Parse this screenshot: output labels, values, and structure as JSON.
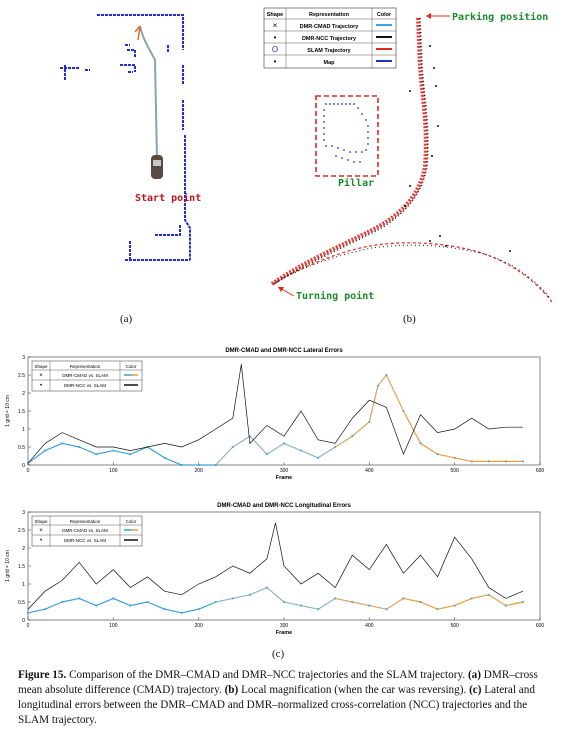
{
  "panel_a": {
    "label": "(a)",
    "start_point": "Start point"
  },
  "panel_b": {
    "label": "(b)",
    "parking_position": "Parking position",
    "pillar": "Pillar",
    "turning_point": "Turning point",
    "legend": {
      "headers": [
        "Shape",
        "Representation",
        "Color"
      ],
      "rows": [
        {
          "shape": "×",
          "label": "DMR-CMAD Trajectory",
          "color": "#39a7d8"
        },
        {
          "shape": "•",
          "label": "DMR-NCC Trajectory",
          "color": "#111111"
        },
        {
          "shape": "O",
          "label": "SLAM Trajectory",
          "color": "#e3261f"
        },
        {
          "shape": "•",
          "label": "Map",
          "color": "#1f2fd6"
        }
      ]
    }
  },
  "panel_c": {
    "label": "(c)",
    "legend": {
      "headers": [
        "Shape",
        "Representation",
        "Color"
      ],
      "rows": [
        {
          "shape": "×",
          "label": "DMR-CMAD vs. SLAM"
        },
        {
          "shape": "•",
          "label": "DMR-NCC vs. SLAM"
        }
      ]
    }
  },
  "chart_data": [
    {
      "type": "line",
      "title": "DMR-CMAD and DMR-NCC Lateral Errors",
      "xlabel": "Frame",
      "ylabel": "1 grid = 10 cm",
      "xlim": [
        0,
        600
      ],
      "ylim": [
        0,
        3
      ],
      "xticks": [
        "0",
        "100",
        "200",
        "300",
        "400",
        "500",
        "600"
      ],
      "yticks": [
        "0",
        "0.5",
        "1",
        "1.5",
        "2",
        "2.5",
        "3"
      ],
      "series": [
        {
          "name": "DMR-CMAD vs. SLAM",
          "x": [
            0,
            20,
            40,
            60,
            80,
            100,
            120,
            140,
            160,
            180,
            200,
            220,
            240,
            260,
            280,
            300,
            320,
            340,
            360,
            380,
            400,
            410,
            420,
            440,
            460,
            480,
            500,
            520,
            540,
            560,
            580
          ],
          "y": [
            0.05,
            0.4,
            0.6,
            0.5,
            0.3,
            0.4,
            0.3,
            0.5,
            0.2,
            0.0,
            0.0,
            0.0,
            0.5,
            0.8,
            0.3,
            0.6,
            0.4,
            0.2,
            0.5,
            0.8,
            1.2,
            2.2,
            2.5,
            1.5,
            0.6,
            0.3,
            0.2,
            0.1,
            0.1,
            0.1,
            0.1
          ]
        },
        {
          "name": "DMR-NCC vs. SLAM",
          "x": [
            0,
            20,
            40,
            60,
            80,
            100,
            120,
            140,
            160,
            180,
            200,
            220,
            240,
            250,
            260,
            280,
            300,
            320,
            340,
            360,
            380,
            400,
            420,
            440,
            460,
            480,
            500,
            520,
            540,
            560,
            580
          ],
          "y": [
            0.05,
            0.6,
            0.9,
            0.7,
            0.5,
            0.5,
            0.4,
            0.5,
            0.6,
            0.5,
            0.7,
            1.0,
            1.3,
            2.8,
            0.6,
            1.1,
            0.8,
            1.5,
            0.7,
            0.6,
            1.3,
            1.8,
            1.6,
            0.3,
            1.4,
            0.9,
            1.0,
            1.3,
            1.0,
            1.05,
            1.05
          ]
        }
      ]
    },
    {
      "type": "line",
      "title": "DMR-CMAD and DMR-NCC Longitudinal Errors",
      "xlabel": "Frame",
      "ylabel": "1 grid = 10 cm",
      "xlim": [
        0,
        600
      ],
      "ylim": [
        0,
        3
      ],
      "xticks": [
        "0",
        "100",
        "200",
        "300",
        "400",
        "500",
        "600"
      ],
      "yticks": [
        "0",
        "0.5",
        "1",
        "1.5",
        "2",
        "2.5",
        "3"
      ],
      "series": [
        {
          "name": "DMR-CMAD vs. SLAM",
          "x": [
            0,
            20,
            40,
            60,
            80,
            100,
            120,
            140,
            160,
            180,
            200,
            220,
            240,
            260,
            280,
            300,
            320,
            340,
            360,
            380,
            400,
            420,
            440,
            460,
            480,
            500,
            520,
            540,
            560,
            580
          ],
          "y": [
            0.2,
            0.3,
            0.5,
            0.6,
            0.4,
            0.6,
            0.4,
            0.5,
            0.3,
            0.2,
            0.3,
            0.5,
            0.6,
            0.7,
            0.9,
            0.5,
            0.4,
            0.3,
            0.6,
            0.5,
            0.4,
            0.3,
            0.6,
            0.5,
            0.3,
            0.4,
            0.6,
            0.7,
            0.4,
            0.5
          ]
        },
        {
          "name": "DMR-NCC vs. SLAM",
          "x": [
            0,
            20,
            40,
            60,
            80,
            100,
            120,
            140,
            160,
            180,
            200,
            220,
            240,
            260,
            280,
            290,
            300,
            320,
            340,
            360,
            380,
            400,
            420,
            440,
            460,
            480,
            500,
            520,
            540,
            560,
            580
          ],
          "y": [
            0.3,
            0.8,
            1.1,
            1.6,
            1.0,
            1.4,
            0.9,
            1.2,
            0.8,
            0.7,
            1.0,
            1.2,
            1.5,
            1.3,
            1.7,
            2.7,
            1.5,
            1.0,
            1.3,
            0.9,
            1.8,
            1.4,
            2.1,
            1.3,
            1.8,
            1.2,
            2.3,
            1.7,
            0.9,
            0.6,
            0.8
          ]
        }
      ]
    }
  ],
  "caption": {
    "figure": "Figure 15.",
    "text1": " Comparison of the DMR–CMAD and DMR–NCC trajectories and the SLAM trajectory.",
    "a_label": "(a)",
    "text2": " DMR–cross mean absolute difference (CMAD) trajectory. ",
    "b_label": "(b)",
    "text3": " Local magnification (when the car was reversing). ",
    "c_label": "(c)",
    "text4": " Lateral and longitudinal errors between the DMR–CMAD and DMR–normalized cross-correlation (NCC) trajectories and the SLAM trajectory."
  }
}
